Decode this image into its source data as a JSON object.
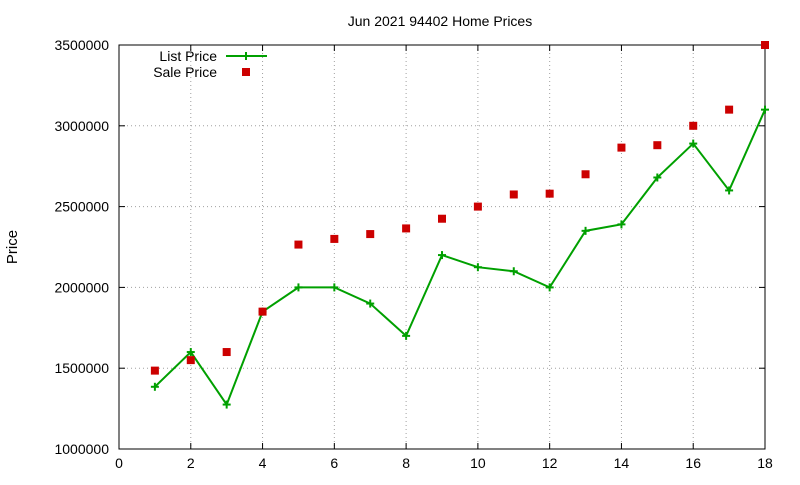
{
  "chart_data": {
    "type": "line",
    "title": "Jun 2021 94402 Home Prices",
    "xlabel": "",
    "ylabel": "Price",
    "xlim": [
      0,
      18
    ],
    "ylim": [
      1000000,
      3500000
    ],
    "x_ticks": [
      0,
      2,
      4,
      6,
      8,
      10,
      12,
      14,
      16,
      18
    ],
    "y_ticks": [
      1000000,
      1500000,
      2000000,
      2500000,
      3000000,
      3500000
    ],
    "x_tick_labels": [
      "0",
      "2",
      "4",
      "6",
      "8",
      "10",
      "12",
      "14",
      "16",
      "18"
    ],
    "y_tick_labels": [
      "1000000",
      "1500000",
      "2000000",
      "2500000",
      "3000000",
      "3500000"
    ],
    "grid": true,
    "legend_position": "top-left",
    "series": [
      {
        "name": "List Price",
        "style": "linespoints",
        "marker": "plus",
        "color": "#00a000",
        "x": [
          1,
          2,
          3,
          4,
          5,
          6,
          7,
          8,
          9,
          10,
          11,
          12,
          13,
          14,
          15,
          16,
          17,
          18
        ],
        "y": [
          1385000,
          1600000,
          1275000,
          1850000,
          2000000,
          2000000,
          1900000,
          1700000,
          2200000,
          2125000,
          2100000,
          2000000,
          2350000,
          2390000,
          2680000,
          2890000,
          2600000,
          3100000
        ]
      },
      {
        "name": "Sale Price",
        "style": "points",
        "marker": "square",
        "color": "#cc0000",
        "x": [
          1,
          2,
          3,
          4,
          5,
          6,
          7,
          8,
          9,
          10,
          11,
          12,
          13,
          14,
          15,
          16,
          17,
          18
        ],
        "y": [
          1485000,
          1550000,
          1600000,
          1850000,
          2265000,
          2300000,
          2330000,
          2365000,
          2425000,
          2500000,
          2575000,
          2580000,
          2700000,
          2865000,
          2880000,
          3000000,
          3100000,
          3500000
        ]
      }
    ]
  }
}
